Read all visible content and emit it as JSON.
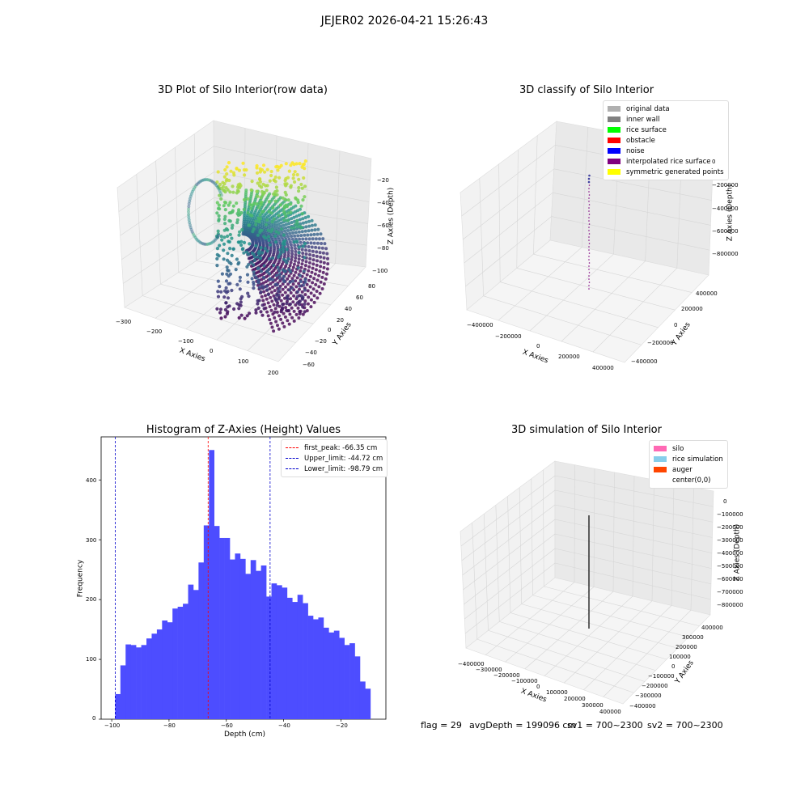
{
  "suptitle": "JEJER02 2026-04-21 15:26:43",
  "footer": {
    "flag": "flag = 29",
    "avg_depth": "avgDepth = 199096 cm",
    "sv1": "sv1 = 700~2300",
    "sv2": "sv2 = 700~2300"
  },
  "chart_data": [
    {
      "type": "scatter",
      "title": "3D Plot of Silo Interior(row data)",
      "xlabel": "X Axies",
      "ylabel": "Y Axies",
      "zlabel": "Z Axies (Depth)",
      "xlim": [
        -300,
        200
      ],
      "ylim": [
        -60,
        80
      ],
      "zlim": [
        -100,
        -20
      ],
      "x_ticks": [
        "−300",
        "−200",
        "−100",
        "0",
        "100",
        "200"
      ],
      "y_ticks": [
        "−60",
        "−40",
        "−20",
        "0",
        "20",
        "40",
        "60",
        "80"
      ],
      "z_ticks": [
        "−20",
        "−40",
        "−60",
        "−80",
        "−100"
      ],
      "colormap": "viridis"
    },
    {
      "type": "scatter",
      "title": "3D classify of Silo Interior",
      "xlabel": "X Axies",
      "ylabel": "Y Axies",
      "zlabel": "Z Axies (Depth)",
      "x_ticks": [
        "−400000",
        "−200000",
        "0",
        "200000",
        "400000"
      ],
      "y_ticks": [
        "−400000",
        "−200000",
        "0",
        "200000",
        "400000"
      ],
      "z_ticks": [
        "0",
        "−200000",
        "−400000",
        "−600000",
        "−800000"
      ],
      "legend": [
        {
          "label": "original data",
          "color": "#b0b0b0"
        },
        {
          "label": "inner wall",
          "color": "#808080"
        },
        {
          "label": "rice surface",
          "color": "#00ff00"
        },
        {
          "label": "obstacle",
          "color": "#ff0000"
        },
        {
          "label": "noise",
          "color": "#0000ff"
        },
        {
          "label": "interpolated rice surface",
          "color": "#800080"
        },
        {
          "label": "symmetric generated points",
          "color": "#ffff00"
        }
      ]
    },
    {
      "type": "bar",
      "title": "Histogram of Z-Axies (Height) Values",
      "xlabel": "Depth (cm)",
      "ylabel": "Frequency",
      "xlim": [
        -103.7,
        -4.3
      ],
      "ylim": [
        0,
        472
      ],
      "x_ticks": [
        -100,
        -80,
        -60,
        -40,
        -20
      ],
      "x_tick_labels": [
        "−100",
        "−80",
        "−60",
        "−40",
        "−20"
      ],
      "y_ticks": [
        0,
        100,
        200,
        300,
        400
      ],
      "bar_color": "#4d4dff",
      "bin_start": -98.79,
      "bin_width": 1.818,
      "values": [
        42,
        90,
        125,
        124,
        120,
        124,
        135,
        143,
        150,
        165,
        162,
        185,
        188,
        193,
        225,
        216,
        262,
        324,
        450,
        323,
        303,
        303,
        267,
        277,
        268,
        243,
        266,
        248,
        257,
        205,
        227,
        224,
        220,
        203,
        196,
        208,
        194,
        173,
        167,
        170,
        153,
        145,
        148,
        136,
        124,
        127,
        105,
        63,
        51
      ],
      "lines": [
        {
          "label": "first_peak: -66.35 cm",
          "x": -66.35,
          "color": "#ff0000"
        },
        {
          "label": "Upper_limit: -44.72 cm",
          "x": -44.72,
          "color": "#0000cc"
        },
        {
          "label": "Lower_limit: -98.79 cm",
          "x": -98.79,
          "color": "#0000cc"
        }
      ]
    },
    {
      "type": "line",
      "title": "3D simulation of Silo Interior",
      "xlabel": "X Axies",
      "ylabel": "Y Axies",
      "zlabel": "Z Axies (Depth)",
      "x_ticks": [
        "−400000",
        "−300000",
        "−200000",
        "−100000",
        "0",
        "100000",
        "200000",
        "300000",
        "400000"
      ],
      "y_ticks": [
        "−400000",
        "−300000",
        "−200000",
        "−100000",
        "0",
        "100000",
        "200000",
        "300000",
        "400000"
      ],
      "z_ticks": [
        "0",
        "−100000",
        "−200000",
        "−300000",
        "−400000",
        "−500000",
        "−600000",
        "−700000",
        "−800000"
      ],
      "legend": [
        {
          "label": "silo",
          "color": "#ff69b4"
        },
        {
          "label": "rice simulation",
          "color": "#87ceeb"
        },
        {
          "label": "auger",
          "color": "#ff4500"
        },
        {
          "label": "center(0,0)",
          "color": "#ffffff"
        }
      ]
    }
  ]
}
